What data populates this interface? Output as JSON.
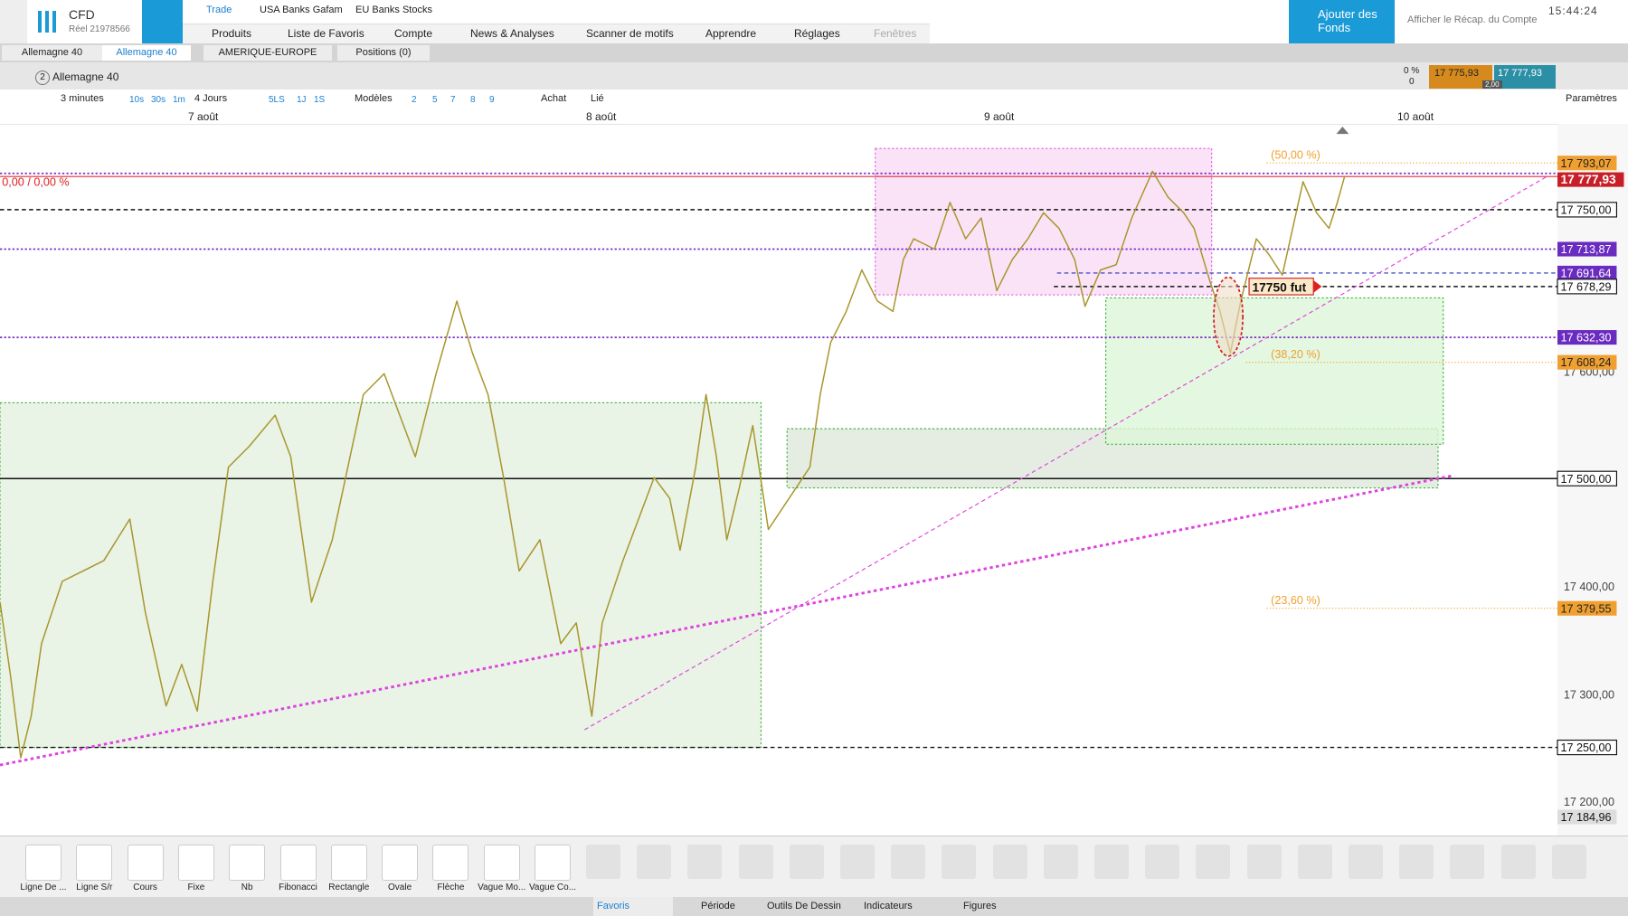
{
  "header": {
    "brand": "CFD",
    "account": "Réel 21978566",
    "menu_top": [
      "Trade",
      "USA Banks Gafam",
      "EU Banks Stocks"
    ],
    "menu": [
      "Produits",
      "Liste de Favoris",
      "Compte",
      "News & Analyses",
      "Scanner de motifs",
      "Apprendre",
      "Réglages",
      "Fenêtres"
    ],
    "add_funds": "Ajouter des Fonds",
    "summary": "Afficher le Récap. du Compte",
    "time": "15:44:24"
  },
  "tabs": [
    "Allemagne 40",
    "Allemagne 40",
    "AMERIQUE-EUROPE",
    "Positions (0)"
  ],
  "chart_header": {
    "index": "2",
    "instrument": "Allemagne 40",
    "change_pct": "0 %",
    "change": "0",
    "bid": "17 775,93",
    "ask": "17 777,93",
    "spread": "2,00"
  },
  "toolbar": {
    "interval": "3 minutes",
    "quick_intervals": [
      "10s",
      "30s",
      "1m"
    ],
    "range": "4 Jours",
    "quick_ranges": [
      "5LS",
      "1J",
      "1S"
    ],
    "templates": "Modèles",
    "numbers": [
      "2",
      "5",
      "7",
      "8",
      "9"
    ],
    "buy": "Achat",
    "linked": "Lié",
    "settings": "Paramètres"
  },
  "dates": [
    "7 août",
    "8 août",
    "9 août",
    "10 août"
  ],
  "price_axis": [
    "17 600,00",
    "17 400,00",
    "17 300,00",
    "17 200,00"
  ],
  "price_tags": [
    "17 793,07",
    "17 777,93",
    "17 750,00",
    "17 713,87",
    "17 691,64",
    "17 678,29",
    "17 632,30",
    "17 608,24",
    "17 500,00",
    "17 379,55",
    "17 250,00",
    "17 184,96"
  ],
  "annotations": {
    "fib": [
      "(50,00 %)",
      "(38,20 %)",
      "(23,60 %)"
    ],
    "pnl": "0,00 / 0,00 %",
    "alert": "17750 fut"
  },
  "drawing_tools": [
    "Ligne De ...",
    "Ligne S/r",
    "Cours",
    "Fixe",
    "Nb",
    "Fibonacci",
    "Rectangle",
    "Ovale",
    "Flèche",
    "Vague Mo...",
    "Vague Co..."
  ],
  "footer_tabs": [
    "Favoris",
    "Période",
    "Outils De Dessin",
    "Indicateurs",
    "Figures"
  ]
}
